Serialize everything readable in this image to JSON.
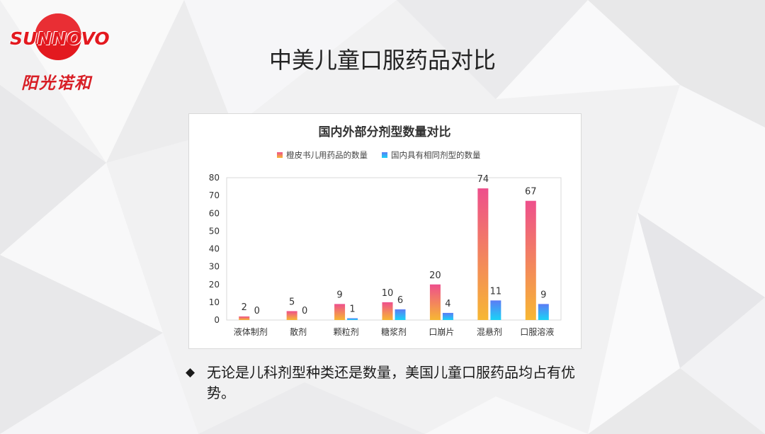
{
  "logo": {
    "text_en": "SUNNOVO",
    "text_cn": "阳光诺和",
    "color": "#e3191f"
  },
  "slide": {
    "title": "中美儿童口服药品对比",
    "bullet_icon": "diamond-icon",
    "bullet_mark": "◆",
    "bullet_text": "无论是儿科剂型种类还是数量，美国儿童口服药品均占有优势。"
  },
  "chart_data": {
    "type": "bar",
    "title": "国内外部分剂型数量对比",
    "categories": [
      "液体制剂",
      "散剂",
      "颗粒剂",
      "糖浆剂",
      "口崩片",
      "混悬剂",
      "口服溶液"
    ],
    "series": [
      {
        "name": "橙皮书儿用药品的数量",
        "values": [
          2,
          5,
          9,
          10,
          20,
          74,
          67
        ],
        "color_top": "#ee4f8c",
        "color_bottom": "#f7b733"
      },
      {
        "name": "国内具有相同剂型的数量",
        "values": [
          0,
          0,
          1,
          6,
          4,
          11,
          9
        ],
        "color_top": "#5b7cf5",
        "color_bottom": "#1ad3f6"
      }
    ],
    "ylim": [
      0,
      80
    ],
    "yticks": [
      0,
      10,
      20,
      30,
      40,
      50,
      60,
      70,
      80
    ],
    "xlabel": "",
    "ylabel": "",
    "legend_position": "top-center",
    "grid": false,
    "data_labels": true
  }
}
